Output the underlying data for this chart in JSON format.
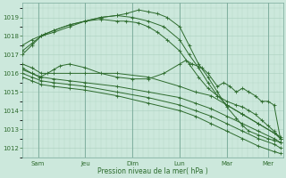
{
  "background_color": "#cce8dc",
  "grid_color": "#aacfbf",
  "line_color": "#2d6b2d",
  "title": "Pression niveau de la mer( hPa )",
  "x_tick_labels": [
    "Sam",
    "Jeu",
    "Dim",
    "Lun",
    "Mar",
    "Mer"
  ],
  "x_tick_positions": [
    0.5,
    2.0,
    3.5,
    5.0,
    6.5,
    7.8
  ],
  "ylim": [
    1011.5,
    1019.8
  ],
  "yticks": [
    1012,
    1013,
    1014,
    1015,
    1016,
    1017,
    1018,
    1019
  ],
  "xlim": [
    0.0,
    8.3
  ],
  "x_vline_positions": [
    0.5,
    2.0,
    3.5,
    5.0,
    6.5,
    7.8
  ],
  "series": [
    {
      "x": [
        0.0,
        0.3,
        0.6,
        1.0,
        1.5,
        2.0,
        2.5,
        3.0,
        3.3,
        3.7,
        4.0,
        4.3,
        4.6,
        5.0,
        5.3,
        5.6,
        5.9,
        6.2,
        6.5,
        6.8,
        7.0,
        7.2,
        7.5,
        7.8,
        8.0,
        8.2
      ],
      "y": [
        1017.0,
        1017.5,
        1018.0,
        1018.2,
        1018.5,
        1018.8,
        1019.0,
        1019.1,
        1019.2,
        1019.4,
        1019.3,
        1019.2,
        1019.0,
        1018.5,
        1017.5,
        1016.5,
        1015.8,
        1015.0,
        1014.2,
        1013.6,
        1013.2,
        1012.9,
        1012.7,
        1012.5,
        1012.4,
        1012.3
      ]
    },
    {
      "x": [
        0.0,
        0.3,
        0.6,
        1.0,
        1.5,
        2.0,
        2.5,
        3.0,
        3.3,
        3.7,
        4.0,
        4.3,
        4.6,
        5.0,
        5.3,
        5.6,
        5.9,
        6.2,
        6.5,
        7.0,
        7.5,
        8.0,
        8.2
      ],
      "y": [
        1017.2,
        1017.6,
        1018.0,
        1018.3,
        1018.6,
        1018.8,
        1018.9,
        1018.8,
        1018.8,
        1018.7,
        1018.5,
        1018.2,
        1017.8,
        1017.2,
        1016.5,
        1015.8,
        1015.2,
        1014.8,
        1014.3,
        1013.8,
        1013.3,
        1012.8,
        1012.6
      ]
    },
    {
      "x": [
        0.0,
        0.3,
        0.7,
        1.0,
        1.5,
        2.0,
        2.5,
        3.0,
        3.5,
        4.0,
        4.5,
        5.0,
        5.3,
        5.6,
        5.9,
        6.2,
        6.5,
        6.8,
        7.0,
        7.2,
        7.4,
        7.6,
        7.8,
        8.0,
        8.2
      ],
      "y": [
        1017.5,
        1017.8,
        1018.1,
        1018.3,
        1018.6,
        1018.8,
        1019.0,
        1019.1,
        1019.0,
        1018.8,
        1018.5,
        1017.8,
        1017.0,
        1016.3,
        1015.5,
        1014.8,
        1014.5,
        1014.3,
        1014.2,
        1014.0,
        1013.8,
        1013.5,
        1013.2,
        1012.9,
        1012.5
      ]
    },
    {
      "x": [
        0.0,
        0.3,
        0.6,
        1.0,
        1.5,
        2.0,
        3.0,
        4.0,
        5.0,
        5.5,
        6.0,
        6.5,
        7.0,
        7.5,
        8.0,
        8.2
      ],
      "y": [
        1016.5,
        1016.3,
        1016.0,
        1016.0,
        1016.0,
        1016.0,
        1016.0,
        1015.8,
        1015.3,
        1015.0,
        1014.8,
        1014.3,
        1013.8,
        1013.3,
        1012.8,
        1012.5
      ]
    },
    {
      "x": [
        0.0,
        0.3,
        0.6,
        1.0,
        1.5,
        2.0,
        3.0,
        4.0,
        5.0,
        5.5,
        6.0,
        6.5,
        7.0,
        7.5,
        8.0,
        8.2
      ],
      "y": [
        1016.2,
        1016.0,
        1015.8,
        1015.7,
        1015.6,
        1015.5,
        1015.3,
        1015.0,
        1014.7,
        1014.4,
        1014.1,
        1013.7,
        1013.3,
        1012.9,
        1012.5,
        1012.3
      ]
    },
    {
      "x": [
        0.0,
        0.3,
        0.6,
        1.0,
        1.5,
        2.0,
        3.0,
        4.0,
        5.0,
        5.5,
        6.0,
        6.5,
        7.0,
        7.5,
        8.0,
        8.2
      ],
      "y": [
        1016.0,
        1015.8,
        1015.6,
        1015.5,
        1015.4,
        1015.3,
        1015.0,
        1014.7,
        1014.3,
        1014.0,
        1013.7,
        1013.3,
        1012.9,
        1012.5,
        1012.2,
        1012.0
      ]
    },
    {
      "x": [
        0.0,
        0.3,
        0.6,
        1.0,
        1.5,
        2.0,
        3.0,
        4.0,
        5.0,
        5.5,
        6.0,
        6.5,
        7.0,
        7.5,
        8.0,
        8.2
      ],
      "y": [
        1015.8,
        1015.6,
        1015.4,
        1015.3,
        1015.2,
        1015.1,
        1014.8,
        1014.4,
        1014.0,
        1013.7,
        1013.3,
        1012.9,
        1012.5,
        1012.1,
        1011.8,
        1011.7
      ]
    },
    {
      "x": [
        0.0,
        0.3,
        0.55,
        0.8,
        1.0,
        1.2,
        1.5,
        2.0,
        2.5,
        3.0,
        3.5,
        4.0,
        4.5,
        5.0,
        5.2,
        5.4,
        5.7,
        5.9,
        6.2,
        6.4,
        6.6,
        6.8,
        7.0,
        7.2,
        7.4,
        7.6,
        7.8,
        8.0,
        8.2
      ],
      "y": [
        1016.3,
        1016.0,
        1015.8,
        1016.0,
        1016.2,
        1016.4,
        1016.5,
        1016.3,
        1016.0,
        1015.8,
        1015.7,
        1015.7,
        1016.0,
        1016.5,
        1016.7,
        1016.5,
        1016.3,
        1016.0,
        1015.3,
        1015.5,
        1015.3,
        1015.0,
        1015.2,
        1015.0,
        1014.8,
        1014.5,
        1014.5,
        1014.3,
        1012.5
      ]
    }
  ]
}
